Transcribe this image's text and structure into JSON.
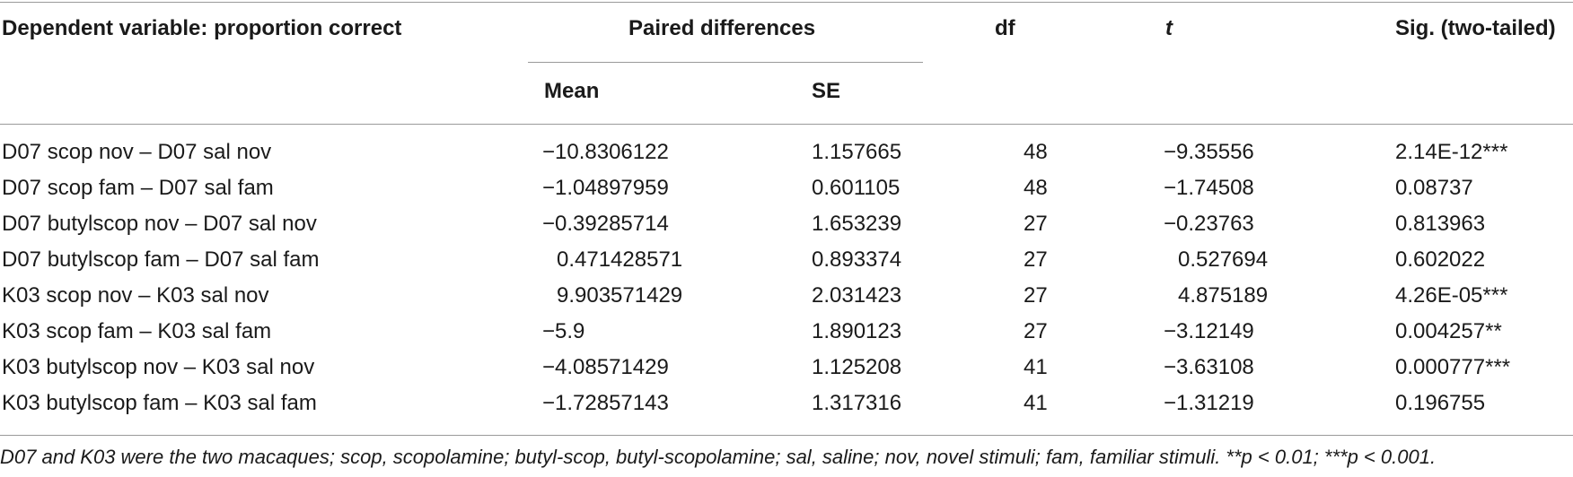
{
  "table": {
    "headers": {
      "dependent_variable": "Dependent variable: proportion correct",
      "paired_differences": "Paired differences",
      "mean": "Mean",
      "se": "SE",
      "df": "df",
      "t": "t",
      "sig": "Sig. (two-tailed)"
    },
    "rows": [
      {
        "label": "D07 scop nov – D07 sal nov",
        "mean": "−10.8306122",
        "se": "1.157665",
        "df": "48",
        "t": "−9.35556",
        "sig": "2.14E-12***"
      },
      {
        "label": "D07 scop fam – D07 sal fam",
        "mean": "−1.04897959",
        "se": "0.601105",
        "df": "48",
        "t": "−1.74508",
        "sig": "0.08737"
      },
      {
        "label": "D07 butylscop nov – D07 sal nov",
        "mean": "−0.39285714",
        "se": "1.653239",
        "df": "27",
        "t": "−0.23763",
        "sig": "0.813963"
      },
      {
        "label": "D07 butylscop fam – D07 sal fam",
        "mean": "0.471428571",
        "se": "0.893374",
        "df": "27",
        "t": "0.527694",
        "sig": "0.602022"
      },
      {
        "label": "K03 scop nov – K03 sal nov",
        "mean": "9.903571429",
        "se": "2.031423",
        "df": "27",
        "t": "4.875189",
        "sig": "4.26E-05***"
      },
      {
        "label": "K03 scop fam – K03 sal fam",
        "mean": "−5.9",
        "se": "1.890123",
        "df": "27",
        "t": "−3.12149",
        "sig": "0.004257**"
      },
      {
        "label": "K03 butylscop nov – K03 sal nov",
        "mean": "−4.08571429",
        "se": "1.125208",
        "df": "41",
        "t": "−3.63108",
        "sig": "0.000777***"
      },
      {
        "label": "K03 butylscop fam – K03 sal fam",
        "mean": "−1.72857143",
        "se": "1.317316",
        "df": "41",
        "t": "−1.31219",
        "sig": "0.196755"
      }
    ]
  },
  "footnote": {
    "main": "D07 and K03 were the two macaques; scop, scopolamine; butyl-scop, butyl-scopolamine; sal, saline; nov, novel stimuli; fam, familiar stimuli. **p < 0.01; ***p < 0.001."
  }
}
